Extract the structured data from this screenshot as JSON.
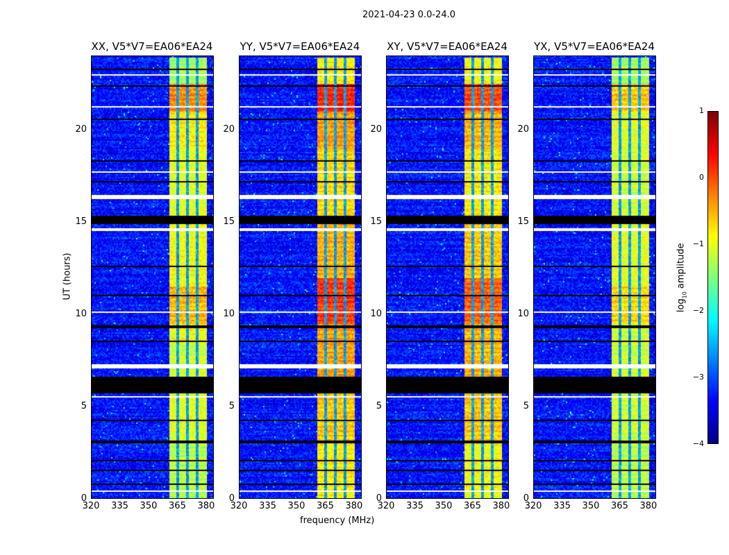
{
  "chart_data": {
    "type": "heatmap",
    "title": "2021-04-23 0.0-24.0",
    "xlabel": "frequency (MHz)",
    "ylabel": "UT (hours)",
    "xlim": [
      320,
      384
    ],
    "ylim": [
      0,
      24
    ],
    "xticks": [
      "320",
      "335",
      "350",
      "365",
      "380"
    ],
    "xtick_values": [
      320,
      335,
      350,
      365,
      380
    ],
    "yticks": [
      "0",
      "5",
      "10",
      "15",
      "20"
    ],
    "ytick_values": [
      0,
      5,
      10,
      15,
      20
    ],
    "colorbar": {
      "label": "log",
      "label_sub": "10",
      "label_rest": " amplitude",
      "range": [
        -4,
        1
      ],
      "ticks": [
        "1",
        "0",
        "−1",
        "−2",
        "−3",
        "−4"
      ],
      "tick_values": [
        1,
        0,
        -1,
        -2,
        -3,
        -4
      ],
      "colormap": "jet"
    },
    "background_level": -3.3,
    "band_mhz": [
      360.4,
      380.0
    ],
    "band_gaps_mhz": [
      365.2,
      370.2,
      375.2
    ],
    "flagged_hours_black": [
      [
        14.95,
        15.4
      ],
      [
        5.72,
        6.65
      ],
      [
        2.98,
        3.2
      ],
      [
        0.72,
        0.82
      ],
      [
        2.0,
        2.08
      ],
      [
        18.3,
        18.38
      ],
      [
        9.3,
        9.4
      ],
      [
        8.5,
        8.56
      ],
      [
        11.0,
        11.05
      ],
      [
        12.6,
        12.66
      ],
      [
        20.6,
        20.66
      ],
      [
        22.35,
        22.42
      ],
      [
        23.3,
        23.35
      ],
      [
        17.2,
        17.26
      ],
      [
        4.2,
        4.26
      ],
      [
        13.3,
        13.35
      ],
      [
        1.5,
        1.56
      ]
    ],
    "flagged_hours_white": [
      [
        16.28,
        16.48
      ],
      [
        7.08,
        7.3
      ],
      [
        14.55,
        14.72
      ],
      [
        0.38,
        0.48
      ],
      [
        23.0,
        23.07
      ],
      [
        19.35,
        19.4
      ],
      [
        10.1,
        10.15
      ],
      [
        5.5,
        5.56
      ],
      [
        21.25,
        21.3
      ],
      [
        11.6,
        11.64
      ],
      [
        17.7,
        17.75
      ]
    ],
    "panels": [
      {
        "title": "XX, V5*V7=EA06*EA24",
        "band_levels": [
          [
            0,
            3,
            -1.2
          ],
          [
            3,
            5.7,
            -1.0
          ],
          [
            6.6,
            8.5,
            -1.1
          ],
          [
            8.5,
            9.5,
            -0.9
          ],
          [
            9.5,
            11.5,
            -0.5
          ],
          [
            11.5,
            15,
            -0.9
          ],
          [
            15.4,
            19,
            -1.0
          ],
          [
            19,
            21,
            -0.8
          ],
          [
            21,
            22.5,
            -0.3
          ],
          [
            22.5,
            24,
            -1.3
          ]
        ]
      },
      {
        "title": "YY, V5*V7=EA06*EA24",
        "band_levels": [
          [
            0,
            3,
            -0.8
          ],
          [
            3,
            5.7,
            -0.6
          ],
          [
            6.6,
            9.5,
            -0.4
          ],
          [
            9.5,
            12,
            0.1
          ],
          [
            12,
            15,
            -0.5
          ],
          [
            15.4,
            19,
            -0.7
          ],
          [
            19,
            21,
            -0.4
          ],
          [
            21,
            22.5,
            0.2
          ],
          [
            22.5,
            24,
            -0.8
          ]
        ]
      },
      {
        "title": "XY, V5*V7=EA06*EA24",
        "band_levels": [
          [
            0,
            3,
            -0.9
          ],
          [
            3,
            5.7,
            -0.6
          ],
          [
            6.6,
            9.5,
            -0.5
          ],
          [
            9.5,
            12,
            -0.1
          ],
          [
            12,
            15,
            -0.6
          ],
          [
            15.4,
            19,
            -0.8
          ],
          [
            19,
            21,
            -0.5
          ],
          [
            21,
            22.5,
            0.0
          ],
          [
            22.5,
            24,
            -0.9
          ]
        ]
      },
      {
        "title": "YX, V5*V7=EA06*EA24",
        "band_levels": [
          [
            0,
            3,
            -1.2
          ],
          [
            3,
            5.7,
            -1.1
          ],
          [
            6.6,
            9.5,
            -1.1
          ],
          [
            9.5,
            11.5,
            -0.7
          ],
          [
            11.5,
            15,
            -1.0
          ],
          [
            15.4,
            19,
            -1.1
          ],
          [
            19,
            21,
            -1.0
          ],
          [
            21,
            22.5,
            -0.6
          ],
          [
            22.5,
            24,
            -1.3
          ]
        ]
      }
    ]
  }
}
